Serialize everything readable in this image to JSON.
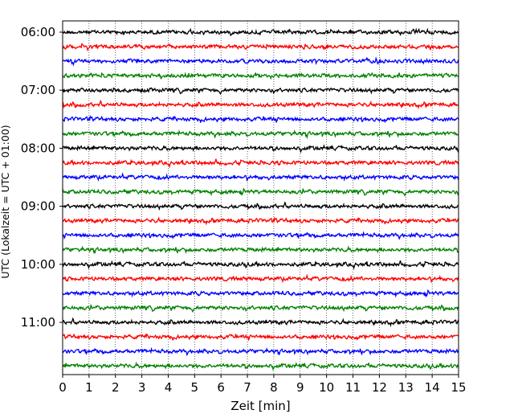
{
  "chart_data": {
    "type": "line",
    "subtype": "helicorder",
    "xlabel": "Zeit  [min]",
    "ylabel": "UTC (Lokalzeit = UTC + 01:00)",
    "xlim": [
      0,
      15
    ],
    "x_ticks": [
      0,
      1,
      2,
      3,
      4,
      5,
      6,
      7,
      8,
      9,
      10,
      11,
      12,
      13,
      14,
      15
    ],
    "x_tick_labels": [
      "0",
      "1",
      "2",
      "3",
      "4",
      "5",
      "6",
      "7",
      "8",
      "9",
      "10",
      "11",
      "12",
      "13",
      "14",
      "15"
    ],
    "row_interval_minutes": 15,
    "y_tick_labels": [
      "06:00",
      "07:00",
      "08:00",
      "09:00",
      "10:00",
      "11:00"
    ],
    "rows": [
      {
        "start": "06:00",
        "color": "#000000"
      },
      {
        "start": "06:15",
        "color": "#ff0000"
      },
      {
        "start": "06:30",
        "color": "#0000ff"
      },
      {
        "start": "06:45",
        "color": "#008000"
      },
      {
        "start": "07:00",
        "color": "#000000"
      },
      {
        "start": "07:15",
        "color": "#ff0000"
      },
      {
        "start": "07:30",
        "color": "#0000ff"
      },
      {
        "start": "07:45",
        "color": "#008000"
      },
      {
        "start": "08:00",
        "color": "#000000"
      },
      {
        "start": "08:15",
        "color": "#ff0000"
      },
      {
        "start": "08:30",
        "color": "#0000ff"
      },
      {
        "start": "08:45",
        "color": "#008000"
      },
      {
        "start": "09:00",
        "color": "#000000"
      },
      {
        "start": "09:15",
        "color": "#ff0000"
      },
      {
        "start": "09:30",
        "color": "#0000ff"
      },
      {
        "start": "09:45",
        "color": "#008000"
      },
      {
        "start": "10:00",
        "color": "#000000"
      },
      {
        "start": "10:15",
        "color": "#ff0000"
      },
      {
        "start": "10:30",
        "color": "#0000ff"
      },
      {
        "start": "10:45",
        "color": "#008000"
      },
      {
        "start": "11:00",
        "color": "#000000"
      },
      {
        "start": "11:15",
        "color": "#ff0000"
      },
      {
        "start": "11:30",
        "color": "#0000ff"
      },
      {
        "start": "11:45",
        "color": "#008000"
      }
    ],
    "grid": {
      "vertical": true,
      "style": "dotted"
    },
    "colors": [
      "#000000",
      "#ff0000",
      "#0000ff",
      "#008000"
    ]
  }
}
